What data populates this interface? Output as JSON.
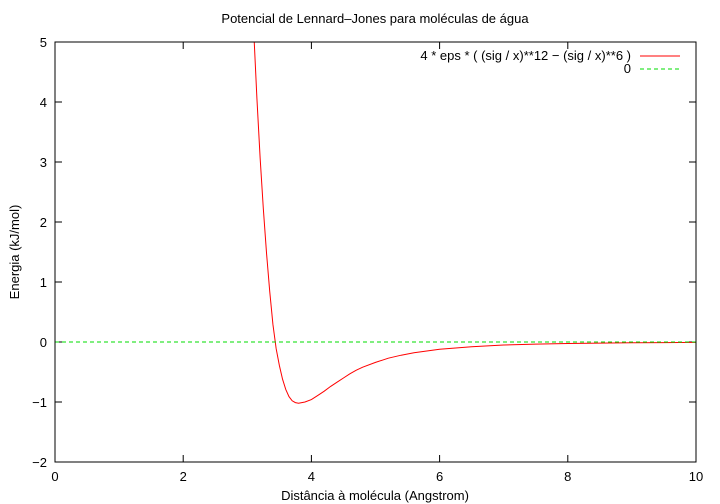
{
  "chart_data": {
    "type": "line",
    "title": "Potencial de Lennard–Jones para moléculas de água",
    "xlabel": "Distância à molécula (Angstrom)",
    "ylabel": "Energia (kJ/mol)",
    "xlim": [
      0,
      10
    ],
    "ylim": [
      -2,
      5
    ],
    "x_ticks": [
      0,
      2,
      4,
      6,
      8,
      10
    ],
    "x_tick_labels": [
      "0",
      "2",
      "4",
      "6",
      "8",
      "10"
    ],
    "y_ticks": [
      -2,
      -1,
      0,
      1,
      2,
      3,
      4,
      5
    ],
    "y_tick_labels": [
      "−2",
      "−1",
      "0",
      "1",
      "2",
      "3",
      "4",
      "5"
    ],
    "grid": false,
    "legend_position": "top-right",
    "series": [
      {
        "name": "4 * eps * ( (sig / x)**12 − (sig / x)**6 )",
        "color": "#ff0000",
        "style": "solid",
        "x": [
          3.1,
          3.15,
          3.2,
          3.25,
          3.3,
          3.35,
          3.4,
          3.45,
          3.5,
          3.55,
          3.6,
          3.65,
          3.7,
          3.75,
          3.8,
          3.85,
          3.9,
          4.0,
          4.1,
          4.2,
          4.3,
          4.4,
          4.5,
          4.6,
          4.7,
          4.8,
          5.0,
          5.2,
          5.4,
          5.6,
          5.8,
          6.0,
          6.5,
          7.0,
          7.5,
          8.0,
          8.5,
          9.0,
          9.5,
          10.0
        ],
        "y": [
          5.19,
          4.06,
          3.07,
          2.22,
          1.48,
          0.84,
          0.29,
          -0.11,
          -0.39,
          -0.62,
          -0.79,
          -0.91,
          -0.98,
          -1.01,
          -1.02,
          -1.01,
          -1.0,
          -0.96,
          -0.89,
          -0.82,
          -0.74,
          -0.67,
          -0.6,
          -0.53,
          -0.47,
          -0.42,
          -0.34,
          -0.27,
          -0.22,
          -0.18,
          -0.15,
          -0.12,
          -0.08,
          -0.05,
          -0.035,
          -0.025,
          -0.018,
          -0.013,
          -0.01,
          -0.007
        ]
      },
      {
        "name": "0",
        "color": "#00dd00",
        "style": "dashed",
        "x": [
          0,
          10
        ],
        "y": [
          0,
          0
        ]
      }
    ]
  }
}
